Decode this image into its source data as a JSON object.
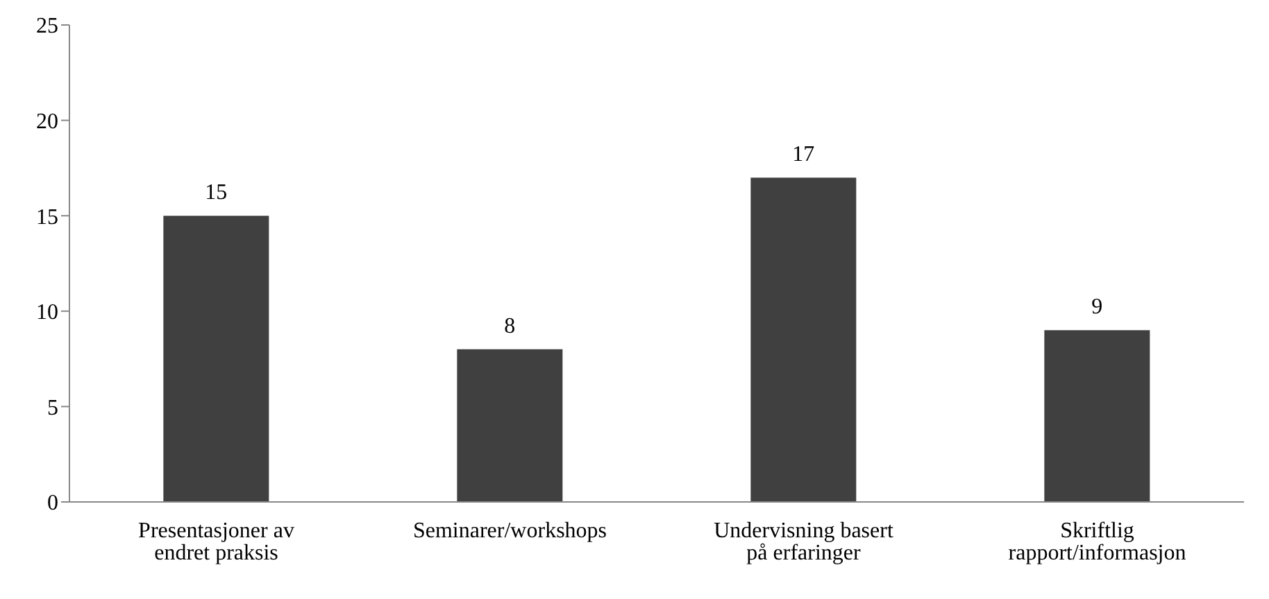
{
  "chart_data": {
    "type": "bar",
    "categories": [
      "Presentasjoner av endret praksis",
      "Seminarer/workshops",
      "Undervisning basert på erfaringer",
      "Skriftlig rapport/informasjon"
    ],
    "values": [
      15,
      8,
      17,
      9
    ],
    "color": "#404040",
    "ylim": [
      0,
      25
    ],
    "yticks": [
      0,
      5,
      10,
      15,
      20,
      25
    ],
    "grid": false,
    "data_labels": true,
    "legend": false
  }
}
